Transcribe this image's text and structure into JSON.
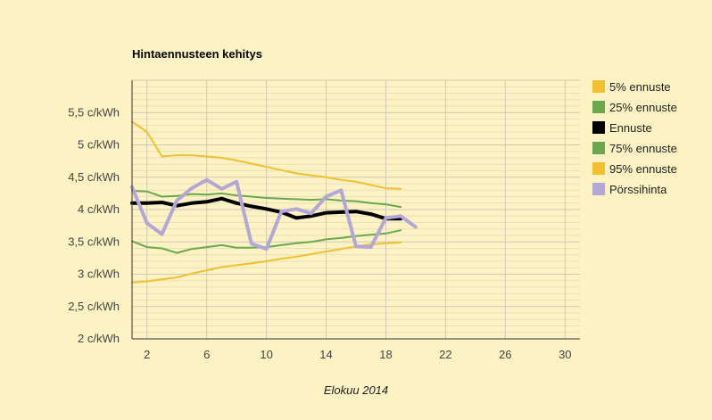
{
  "chart_data": {
    "type": "line",
    "title": "Hintaennusteen kehitys",
    "xlabel": "Elokuu 2014",
    "ylabel": "",
    "xlim": [
      1,
      31
    ],
    "ylim": [
      2,
      6
    ],
    "x_ticks": [
      2,
      6,
      10,
      14,
      18,
      22,
      26,
      30
    ],
    "y_ticks": [
      {
        "value": 2,
        "label": "2 c/kWh"
      },
      {
        "value": 2.5,
        "label": "2,5 c/kWh"
      },
      {
        "value": 3,
        "label": "3 c/kWh"
      },
      {
        "value": 3.5,
        "label": "3,5 c/kWh"
      },
      {
        "value": 4,
        "label": "4 c/kWh"
      },
      {
        "value": 4.5,
        "label": "4,5 c/kWh"
      },
      {
        "value": 5,
        "label": "5 c/kWh"
      },
      {
        "value": 5.5,
        "label": "5,5 c/kWh"
      }
    ],
    "grid": true,
    "legend_position": "right",
    "series": [
      {
        "name": "5% ennuste",
        "color": "#f0c030",
        "stroke_width": 2,
        "x": [
          1,
          2,
          3,
          4,
          5,
          6,
          7,
          8,
          9,
          10,
          11,
          12,
          13,
          14,
          15,
          16,
          17,
          18,
          19
        ],
        "values": [
          2.87,
          2.89,
          2.92,
          2.95,
          3.01,
          3.06,
          3.11,
          3.14,
          3.17,
          3.2,
          3.24,
          3.27,
          3.31,
          3.35,
          3.39,
          3.43,
          3.46,
          3.48,
          3.49
        ]
      },
      {
        "name": "25% ennuste",
        "color": "#6aa84f",
        "stroke_width": 2,
        "x": [
          1,
          2,
          3,
          4,
          5,
          6,
          7,
          8,
          9,
          10,
          11,
          12,
          13,
          14,
          15,
          16,
          17,
          18,
          19
        ],
        "values": [
          3.51,
          3.42,
          3.4,
          3.33,
          3.39,
          3.42,
          3.45,
          3.41,
          3.41,
          3.42,
          3.45,
          3.48,
          3.5,
          3.54,
          3.56,
          3.59,
          3.61,
          3.63,
          3.68
        ]
      },
      {
        "name": "Ennuste",
        "color": "#000000",
        "stroke_width": 4,
        "x": [
          1,
          2,
          3,
          4,
          5,
          6,
          7,
          8,
          9,
          10,
          11,
          12,
          13,
          14,
          15,
          16,
          17,
          18,
          19
        ],
        "values": [
          4.1,
          4.1,
          4.11,
          4.06,
          4.1,
          4.12,
          4.17,
          4.1,
          4.05,
          4.01,
          3.96,
          3.87,
          3.9,
          3.95,
          3.96,
          3.97,
          3.93,
          3.86,
          3.86
        ]
      },
      {
        "name": "75% ennuste",
        "color": "#6aa84f",
        "stroke_width": 2,
        "x": [
          1,
          2,
          3,
          4,
          5,
          6,
          7,
          8,
          9,
          10,
          11,
          12,
          13,
          14,
          15,
          16,
          17,
          18,
          19
        ],
        "values": [
          4.29,
          4.28,
          4.2,
          4.21,
          4.24,
          4.23,
          4.25,
          4.22,
          4.2,
          4.18,
          4.17,
          4.16,
          4.15,
          4.16,
          4.14,
          4.13,
          4.1,
          4.08,
          4.04
        ]
      },
      {
        "name": "95% ennuste",
        "color": "#f0c030",
        "stroke_width": 2,
        "x": [
          1,
          2,
          3,
          4,
          5,
          6,
          7,
          8,
          9,
          10,
          11,
          12,
          13,
          14,
          15,
          16,
          17,
          18,
          19
        ],
        "values": [
          5.36,
          5.2,
          4.82,
          4.84,
          4.84,
          4.82,
          4.8,
          4.76,
          4.71,
          4.66,
          4.61,
          4.56,
          4.53,
          4.5,
          4.46,
          4.43,
          4.38,
          4.33,
          4.32
        ]
      },
      {
        "name": "Pörssihinta",
        "color": "#b4a7d6",
        "stroke_width": 4,
        "x": [
          1,
          2,
          3,
          4,
          5,
          6,
          7,
          8,
          9,
          10,
          11,
          12,
          13,
          14,
          15,
          16,
          17,
          18,
          19,
          20
        ],
        "values": [
          4.35,
          3.79,
          3.62,
          4.14,
          4.33,
          4.46,
          4.32,
          4.43,
          3.47,
          3.39,
          3.97,
          4.01,
          3.94,
          4.2,
          4.3,
          3.43,
          3.42,
          3.87,
          3.9,
          3.73
        ]
      }
    ]
  }
}
